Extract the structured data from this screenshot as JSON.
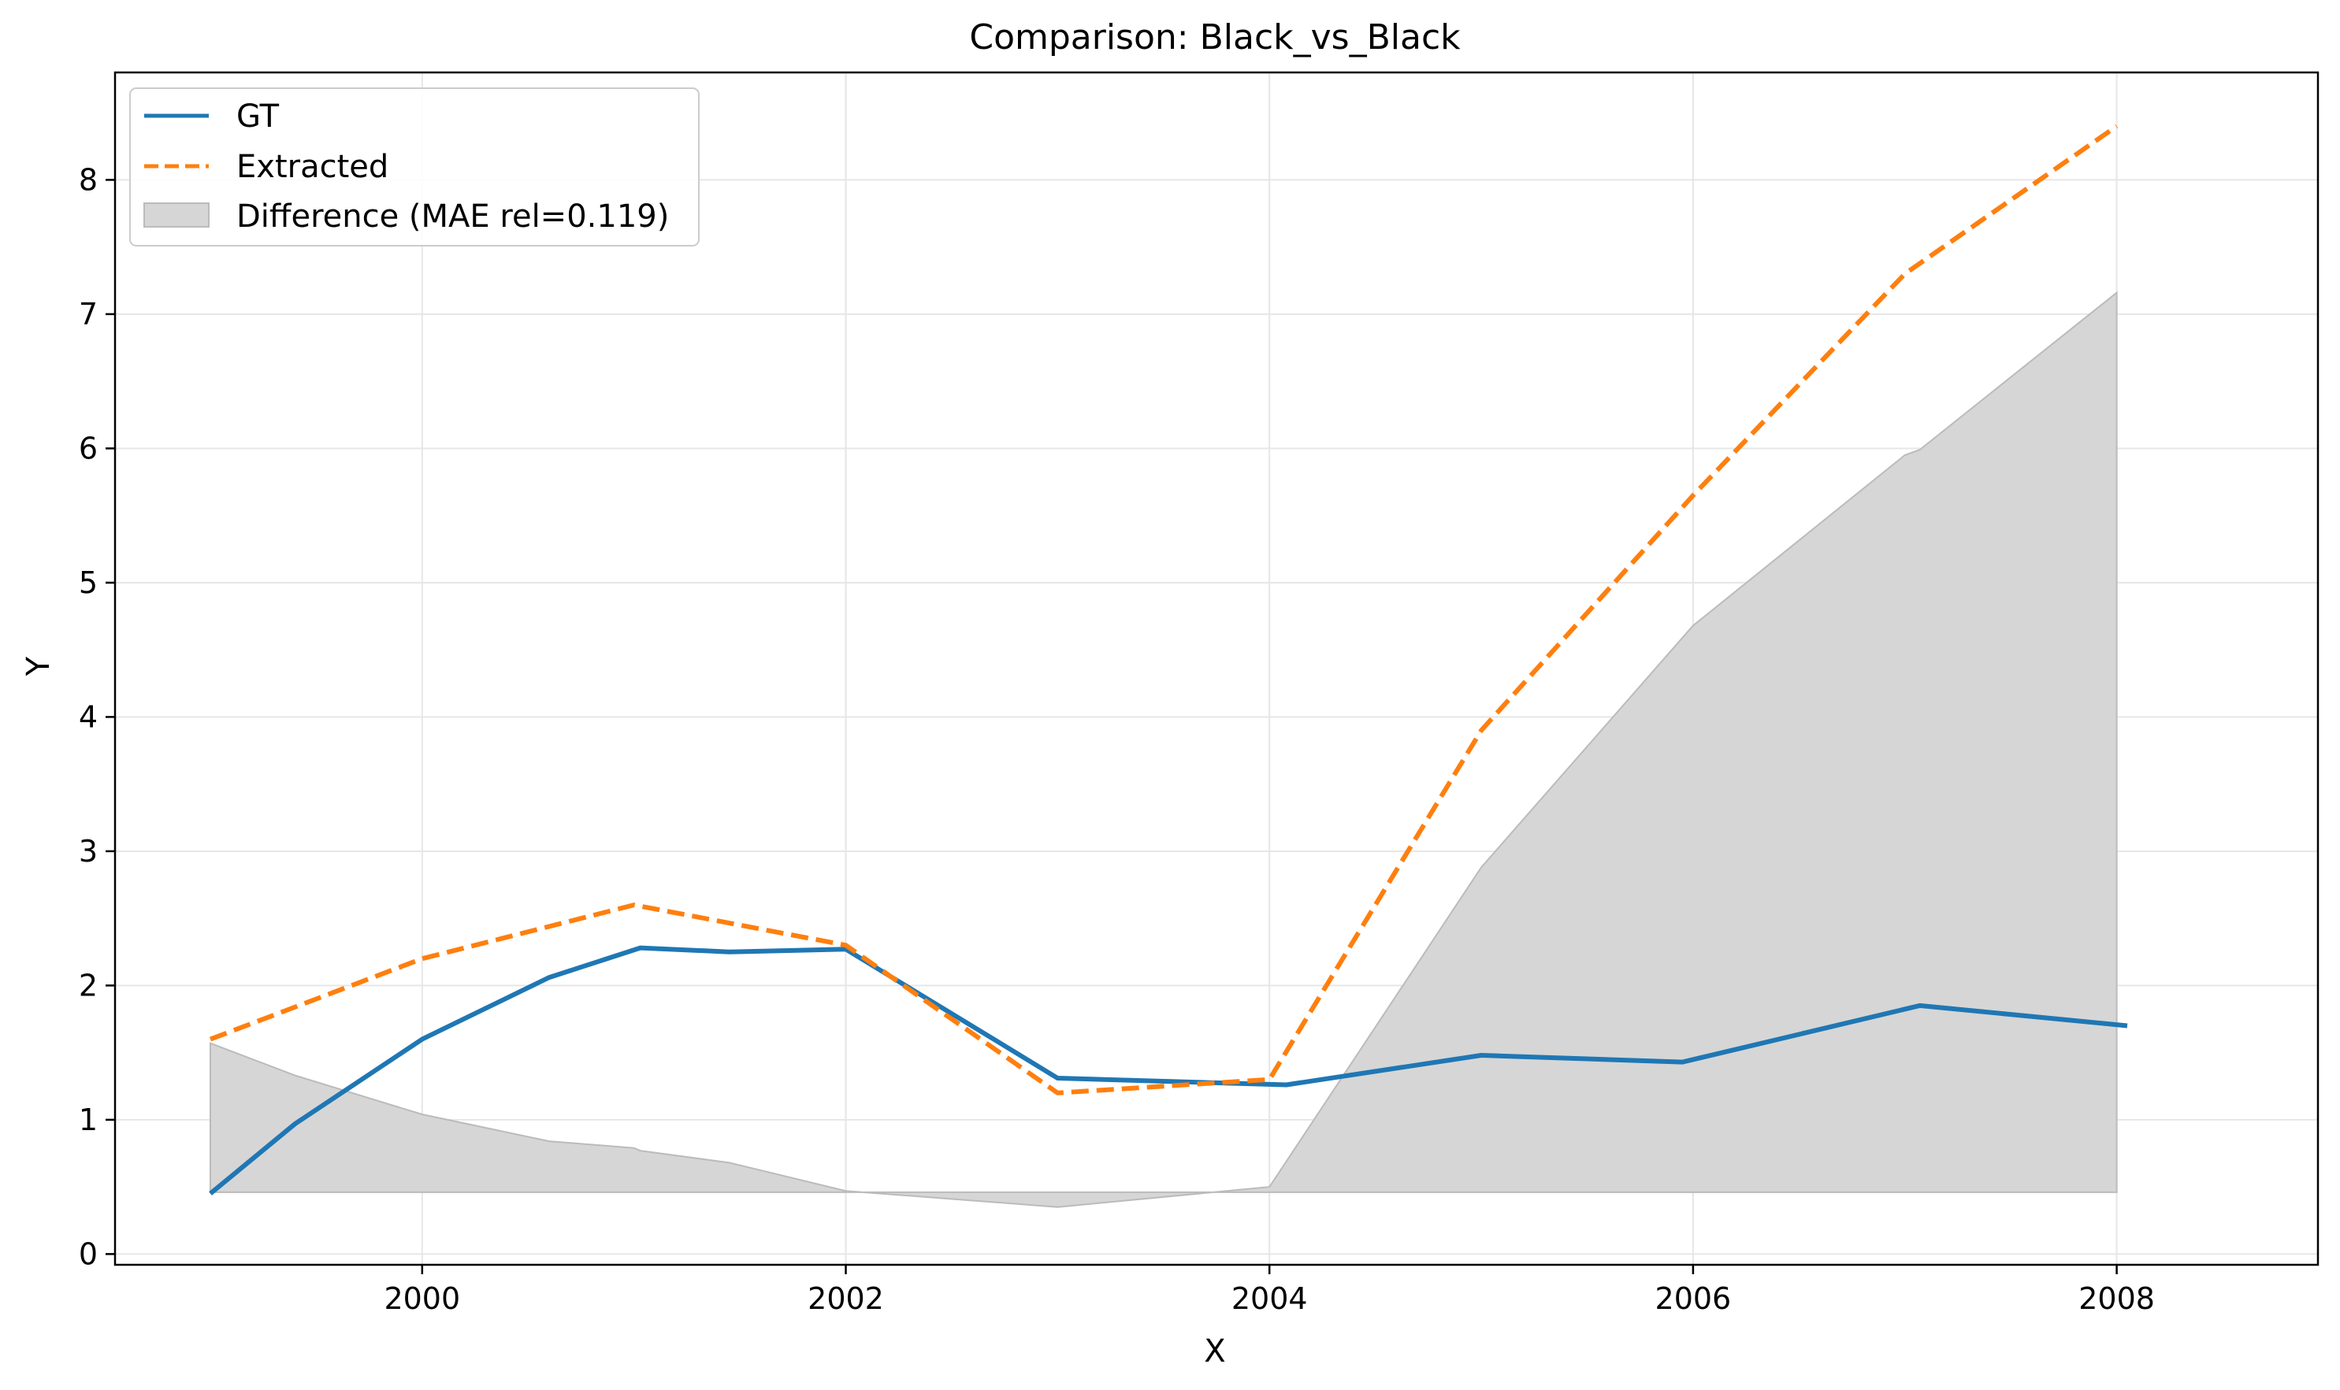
{
  "chart_data": {
    "type": "line",
    "title": "Comparison: Black_vs_Black",
    "xlabel": "X",
    "ylabel": "Y",
    "xlim": [
      1998.55,
      2008.95
    ],
    "ylim": [
      -0.08,
      8.8
    ],
    "x_ticks": [
      2000,
      2002,
      2004,
      2006,
      2008
    ],
    "y_ticks": [
      0,
      1,
      2,
      3,
      4,
      5,
      6,
      7,
      8
    ],
    "grid": true,
    "legend_position": "top-left",
    "series": [
      {
        "name": "GT",
        "style": "solid",
        "color": "#1f77b4",
        "points": [
          [
            1999.0,
            0.45
          ],
          [
            1999.4,
            0.97
          ],
          [
            2000.0,
            1.6
          ],
          [
            2000.6,
            2.06
          ],
          [
            2001.03,
            2.28
          ],
          [
            2001.45,
            2.25
          ],
          [
            2002.0,
            2.27
          ],
          [
            2003.0,
            1.31
          ],
          [
            2004.08,
            1.26
          ],
          [
            2005.0,
            1.48
          ],
          [
            2005.95,
            1.43
          ],
          [
            2007.07,
            1.85
          ],
          [
            2008.05,
            1.7
          ]
        ]
      },
      {
        "name": "Extracted",
        "style": "dashed",
        "color": "#ff7f0e",
        "points": [
          [
            1999.0,
            1.6
          ],
          [
            2000.0,
            2.2
          ],
          [
            2001.0,
            2.6
          ],
          [
            2002.0,
            2.3
          ],
          [
            2003.0,
            1.2
          ],
          [
            2004.0,
            1.3
          ],
          [
            2005.0,
            3.9
          ],
          [
            2006.0,
            5.65
          ],
          [
            2007.0,
            7.3
          ],
          [
            2008.0,
            8.4
          ]
        ]
      }
    ],
    "fill": {
      "name": "Difference (MAE rel=0.119)",
      "color": "#d6d6d6",
      "edge_color": "#bbbbbb",
      "baseline": 0.46,
      "points": [
        [
          1999.0,
          1.57
        ],
        [
          1999.4,
          1.33
        ],
        [
          2000.0,
          1.04
        ],
        [
          2000.6,
          0.84
        ],
        [
          2001.0,
          0.79
        ],
        [
          2001.03,
          0.77
        ],
        [
          2001.45,
          0.68
        ],
        [
          2002.0,
          0.47
        ],
        [
          2003.0,
          0.35
        ],
        [
          2004.0,
          0.5
        ],
        [
          2005.0,
          2.88
        ],
        [
          2006.0,
          4.68
        ],
        [
          2007.0,
          5.95
        ],
        [
          2007.07,
          5.99
        ],
        [
          2008.0,
          7.16
        ]
      ]
    }
  }
}
